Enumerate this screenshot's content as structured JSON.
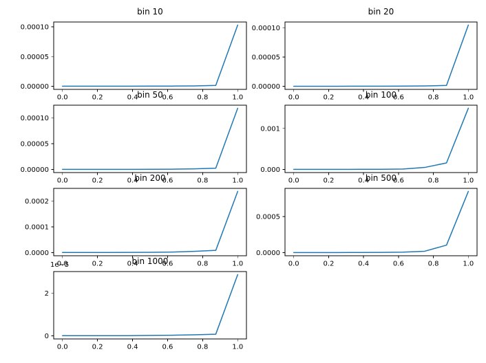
{
  "figure": {
    "background": "#ffffff",
    "line_color": "#1f77b4",
    "axes_color": "#000000",
    "text_color": "#000000"
  },
  "chart_data": [
    {
      "type": "line",
      "title": "bin 10",
      "x": [
        0,
        0.125,
        0.25,
        0.375,
        0.5,
        0.625,
        0.75,
        0.875,
        1.0
      ],
      "y": [
        2e-07,
        2e-07,
        2e-07,
        2e-07,
        3e-07,
        4e-07,
        7e-07,
        1.5e-06,
        0.000103
      ],
      "xlim": [
        -0.05,
        1.05
      ],
      "ylim": [
        -5.15e-06,
        0.00010815
      ],
      "xticks": {
        "values": [
          0,
          0.2,
          0.4,
          0.6,
          0.8,
          1.0
        ],
        "labels": [
          "0.0",
          "0.2",
          "0.4",
          "0.6",
          "0.8",
          "1.0"
        ]
      },
      "yticks": {
        "values": [
          0,
          5e-05,
          0.0001
        ],
        "labels": [
          "0.00000",
          "0.00005",
          "0.00010"
        ]
      },
      "grid": false,
      "legend": null
    },
    {
      "type": "line",
      "title": "bin 20",
      "x": [
        0,
        0.125,
        0.25,
        0.375,
        0.5,
        0.625,
        0.75,
        0.875,
        1.0
      ],
      "y": [
        1e-07,
        1e-07,
        1e-07,
        2e-07,
        2e-07,
        3e-07,
        6e-07,
        1.5e-06,
        0.000105
      ],
      "xlim": [
        -0.05,
        1.05
      ],
      "ylim": [
        -5.25e-06,
        0.00011025
      ],
      "xticks": {
        "values": [
          0,
          0.2,
          0.4,
          0.6,
          0.8,
          1.0
        ],
        "labels": [
          "0.0",
          "0.2",
          "0.4",
          "0.6",
          "0.8",
          "1.0"
        ]
      },
      "yticks": {
        "values": [
          0,
          5e-05,
          0.0001
        ],
        "labels": [
          "0.00000",
          "0.00005",
          "0.00010"
        ]
      },
      "grid": false,
      "legend": null
    },
    {
      "type": "line",
      "title": "bin 50",
      "x": [
        0,
        0.125,
        0.25,
        0.375,
        0.5,
        0.625,
        0.75,
        0.875,
        1.0
      ],
      "y": [
        2e-07,
        2e-07,
        2e-07,
        3e-07,
        4e-07,
        6e-07,
        1.2e-06,
        2.5e-06,
        0.000119
      ],
      "xlim": [
        -0.05,
        1.05
      ],
      "ylim": [
        -5.95e-06,
        0.00012495
      ],
      "xticks": {
        "values": [
          0,
          0.2,
          0.4,
          0.6,
          0.8,
          1.0
        ],
        "labels": [
          "0.0",
          "0.2",
          "0.4",
          "0.6",
          "0.8",
          "1.0"
        ]
      },
      "yticks": {
        "values": [
          0,
          5e-05,
          0.0001
        ],
        "labels": [
          "0.00000",
          "0.00005",
          "0.00010"
        ]
      },
      "grid": false,
      "legend": null
    },
    {
      "type": "line",
      "title": "bin 100",
      "x": [
        0,
        0.125,
        0.25,
        0.375,
        0.5,
        0.625,
        0.75,
        0.875,
        1.0
      ],
      "y": [
        3e-06,
        3e-06,
        3e-06,
        4e-06,
        6e-06,
        1.2e-05,
        5e-05,
        0.00016,
        0.00149
      ],
      "xlim": [
        -0.05,
        1.05
      ],
      "ylim": [
        -7.45e-05,
        0.0015645
      ],
      "xticks": {
        "values": [
          0,
          0.2,
          0.4,
          0.6,
          0.8,
          1.0
        ],
        "labels": [
          "0.0",
          "0.2",
          "0.4",
          "0.6",
          "0.8",
          "1.0"
        ]
      },
      "yticks": {
        "values": [
          0,
          0.001
        ],
        "labels": [
          "0.000",
          "0.001"
        ]
      },
      "grid": false,
      "legend": null
    },
    {
      "type": "line",
      "title": "bin 200",
      "x": [
        0,
        0.125,
        0.25,
        0.375,
        0.5,
        0.625,
        0.75,
        0.875,
        1.0
      ],
      "y": [
        8e-07,
        8e-07,
        9e-07,
        1e-06,
        1.5e-06,
        2.5e-06,
        5e-06,
        9e-06,
        0.000238
      ],
      "xlim": [
        -0.05,
        1.05
      ],
      "ylim": [
        -1.19e-05,
        0.0002499
      ],
      "xticks": {
        "values": [
          0,
          0.2,
          0.4,
          0.6,
          0.8,
          1.0
        ],
        "labels": [
          "0.0",
          "0.2",
          "0.4",
          "0.6",
          "0.8",
          "1.0"
        ]
      },
      "yticks": {
        "values": [
          0,
          0.0001,
          0.0002
        ],
        "labels": [
          "0.0000",
          "0.0001",
          "0.0002"
        ]
      },
      "grid": false,
      "legend": null
    },
    {
      "type": "line",
      "title": "bin 500",
      "x": [
        0,
        0.125,
        0.25,
        0.375,
        0.5,
        0.625,
        0.75,
        0.875,
        1.0
      ],
      "y": [
        2e-06,
        2e-06,
        2e-06,
        3e-06,
        4e-06,
        8e-06,
        2e-05,
        0.000105,
        0.00085
      ],
      "xlim": [
        -0.05,
        1.05
      ],
      "ylim": [
        -4.25e-05,
        0.0008925
      ],
      "xticks": {
        "values": [
          0,
          0.2,
          0.4,
          0.6,
          0.8,
          1.0
        ],
        "labels": [
          "0.0",
          "0.2",
          "0.4",
          "0.6",
          "0.8",
          "1.0"
        ]
      },
      "yticks": {
        "values": [
          0,
          0.0005
        ],
        "labels": [
          "0.0000",
          "0.0005"
        ]
      },
      "grid": false,
      "legend": null
    },
    {
      "type": "line",
      "title": "bin 1000",
      "x": [
        0,
        0.125,
        0.25,
        0.375,
        0.5,
        0.625,
        0.75,
        0.875,
        1.0
      ],
      "y": [
        1e-07,
        1e-07,
        1e-07,
        1e-07,
        2e-07,
        3e-07,
        5e-07,
        8e-07,
        2.88e-05
      ],
      "xlim": [
        -0.05,
        1.05
      ],
      "ylim": [
        -1.44e-06,
        3.024e-05
      ],
      "xticks": {
        "values": [
          0,
          0.2,
          0.4,
          0.6,
          0.8,
          1.0
        ],
        "labels": [
          "0.0",
          "0.2",
          "0.4",
          "0.6",
          "0.8",
          "1.0"
        ]
      },
      "yticks": {
        "values": [
          0,
          2e-05
        ],
        "labels": [
          "0",
          "2"
        ]
      },
      "offset_label": "1e−5",
      "grid": false,
      "legend": null
    }
  ]
}
